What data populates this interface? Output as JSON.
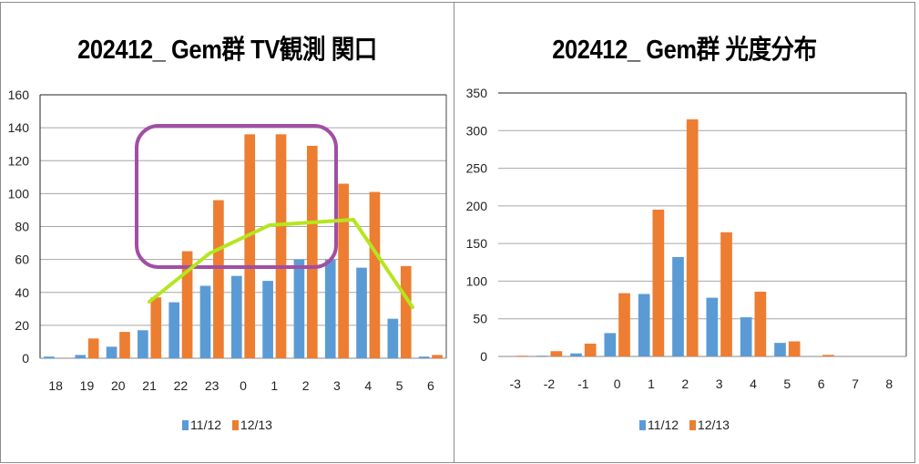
{
  "colors": {
    "series1": "#5b9bd5",
    "series2": "#ed7d31",
    "highlight_box": "#a14ea3",
    "trend_line": "#b5e61d",
    "grid": "#a6a6a6"
  },
  "chart_data": [
    {
      "type": "bar",
      "title": "202412_ Gem群  TV観測  関口",
      "xlabel": "",
      "ylabel": "",
      "ylim": [
        0,
        160
      ],
      "yticks": [
        0,
        20,
        40,
        60,
        80,
        100,
        120,
        140,
        160
      ],
      "grid": true,
      "legend_position": "bottom",
      "categories": [
        "18",
        "19",
        "20",
        "21",
        "22",
        "23",
        "0",
        "1",
        "2",
        "3",
        "4",
        "5",
        "6"
      ],
      "series": [
        {
          "name": "11/12",
          "color": "#5b9bd5",
          "values": [
            1,
            2,
            7,
            17,
            34,
            44,
            50,
            47,
            60,
            60,
            55,
            24,
            1
          ]
        },
        {
          "name": "12/13",
          "color": "#ed7d31",
          "values": [
            0,
            12,
            16,
            37,
            65,
            96,
            136,
            136,
            129,
            106,
            101,
            56,
            2
          ]
        }
      ],
      "annotations": [
        {
          "type": "rounded-rectangle",
          "color": "#a14ea3",
          "description": "highlight around peak hours 23–2"
        },
        {
          "type": "polyline",
          "color": "#b5e61d",
          "description": "hand-drawn trend line",
          "points_approx": [
            [
              21,
              34
            ],
            [
              23,
              64
            ],
            [
              1,
              81
            ],
            [
              3,
              84
            ],
            [
              5,
              31
            ]
          ]
        }
      ]
    },
    {
      "type": "bar",
      "title": "202412_ Gem群  光度分布",
      "xlabel": "",
      "ylabel": "",
      "ylim": [
        0,
        350
      ],
      "yticks": [
        0,
        50,
        100,
        150,
        200,
        250,
        300,
        350
      ],
      "grid": true,
      "legend_position": "bottom",
      "categories": [
        "-3",
        "-2",
        "-1",
        "0",
        "1",
        "2",
        "3",
        "4",
        "5",
        "6",
        "7",
        "8"
      ],
      "series": [
        {
          "name": "11/12",
          "color": "#5b9bd5",
          "values": [
            0,
            1,
            4,
            31,
            83,
            132,
            78,
            52,
            18,
            0,
            0,
            0
          ]
        },
        {
          "name": "12/13",
          "color": "#ed7d31",
          "values": [
            1,
            7,
            17,
            84,
            195,
            315,
            165,
            86,
            20,
            2,
            0,
            0
          ]
        }
      ]
    }
  ],
  "left": {
    "title": "202412_ Gem群  TV観測  関口",
    "legend": [
      "11/12",
      "12/13"
    ]
  },
  "right": {
    "title": "202412_ Gem群  光度分布",
    "legend": [
      "11/12",
      "12/13"
    ]
  }
}
